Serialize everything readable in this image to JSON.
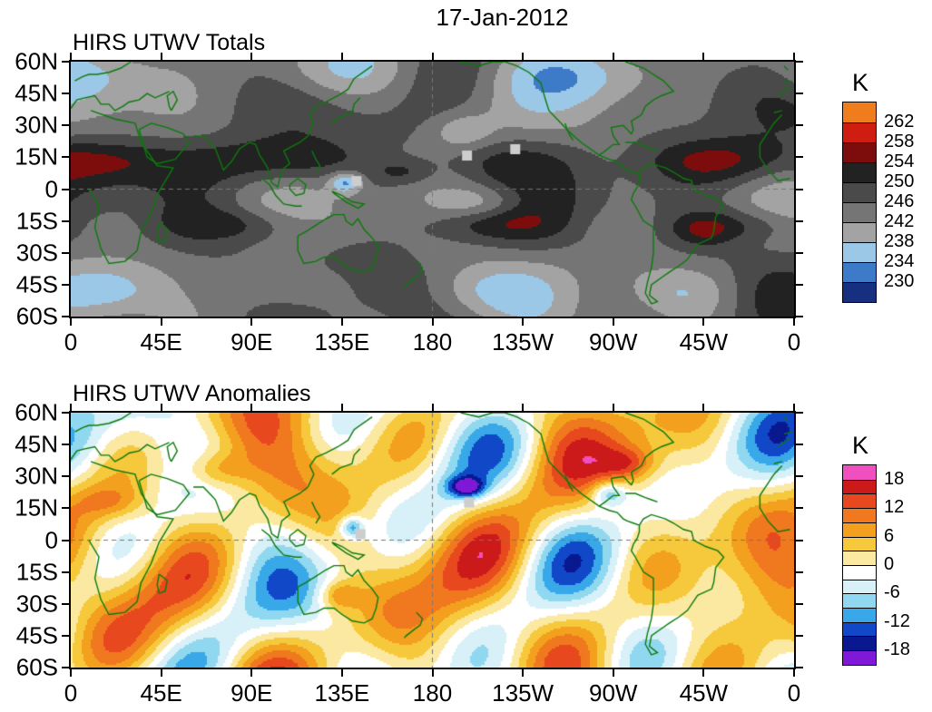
{
  "page_title": "17-Jan-2012",
  "panels": [
    {
      "title": "HIRS UTWV Totals",
      "colorbar": {
        "unit": "K",
        "labels": [
          "262",
          "258",
          "254",
          "250",
          "246",
          "242",
          "238",
          "234",
          "230"
        ],
        "colors": [
          "#ef7d1e",
          "#cf1d12",
          "#7d0d0d",
          "#222222",
          "#4a4a4a",
          "#757575",
          "#a3a3a3",
          "#9cc8e8",
          "#3d7ac8",
          "#162f7e"
        ]
      },
      "yticks": [
        "60N",
        "45N",
        "30N",
        "15N",
        "0",
        "15S",
        "30S",
        "45S",
        "60S"
      ],
      "xticks": [
        "0",
        "45E",
        "90E",
        "135E",
        "180",
        "135W",
        "90W",
        "45W",
        "0"
      ]
    },
    {
      "title": "HIRS UTWV Anomalies",
      "colorbar": {
        "unit": "K",
        "labels": [
          "18",
          "12",
          "6",
          "0",
          "-6",
          "-12",
          "-18"
        ],
        "colors": [
          "#f04fc0",
          "#cc1a1a",
          "#e8481e",
          "#f0781e",
          "#f2a01e",
          "#f6c83c",
          "#fbe9a2",
          "#ffffff",
          "#d8f0f8",
          "#90d8f0",
          "#38a8e8",
          "#1048c8",
          "#0a1890",
          "#8018d8"
        ]
      },
      "yticks": [
        "60N",
        "45N",
        "30N",
        "15N",
        "0",
        "15S",
        "30S",
        "45S",
        "60S"
      ],
      "xticks": [
        "0",
        "45E",
        "90E",
        "135E",
        "180",
        "135W",
        "90W",
        "45W",
        "0"
      ]
    }
  ],
  "chart_data": [
    {
      "type": "heatmap",
      "subtype": "filled_contour_world_map",
      "title": "HIRS UTWV Totals",
      "date": "17-Jan-2012",
      "units": "K",
      "lat_range": [
        -60,
        60
      ],
      "lon_range": [
        0,
        360
      ],
      "levels": [
        230,
        234,
        238,
        242,
        246,
        250,
        254,
        258,
        262
      ],
      "palette_top_to_bottom": [
        "#ef7d1e",
        "#cf1d12",
        "#7d0d0d",
        "#222222",
        "#4a4a4a",
        "#757575",
        "#a3a3a3",
        "#9cc8e8",
        "#3d7ac8",
        "#162f7e"
      ],
      "coastline_color": "#0b7a0b",
      "missing_markers_lonlat": [
        [
          142,
          4
        ],
        [
          197,
          16
        ],
        [
          221,
          19
        ]
      ],
      "xticks": [
        "0",
        "45E",
        "90E",
        "135E",
        "180",
        "135W",
        "90W",
        "45W",
        "0"
      ],
      "yticks": [
        "60N",
        "45N",
        "30N",
        "15N",
        "0",
        "15S",
        "30S",
        "45S",
        "60S"
      ]
    },
    {
      "type": "heatmap",
      "subtype": "filled_contour_world_map",
      "title": "HIRS UTWV Anomalies",
      "date": "17-Jan-2012",
      "units": "K",
      "lat_range": [
        -60,
        60
      ],
      "lon_range": [
        0,
        360
      ],
      "levels": [
        -18,
        -15,
        -12,
        -9,
        -6,
        -3,
        0,
        3,
        6,
        9,
        12,
        15,
        18
      ],
      "palette_top_to_bottom": [
        "#f04fc0",
        "#cc1a1a",
        "#e8481e",
        "#f0781e",
        "#f2a01e",
        "#f6c83c",
        "#fbe9a2",
        "#ffffff",
        "#d8f0f8",
        "#90d8f0",
        "#38a8e8",
        "#1048c8",
        "#0a1890",
        "#8018d8"
      ],
      "coastline_color": "#0b7a0b",
      "missing_markers_lonlat": [
        [
          144,
          3
        ],
        [
          198,
          18
        ]
      ],
      "xticks": [
        "0",
        "45E",
        "90E",
        "135E",
        "180",
        "135W",
        "90W",
        "45W",
        "0"
      ],
      "yticks": [
        "60N",
        "45N",
        "30N",
        "15N",
        "0",
        "15S",
        "30S",
        "45S",
        "60S"
      ]
    }
  ],
  "geo": {
    "equator_dashed": true,
    "dateline_dashed": true,
    "coastlines": [
      [
        [
          -6,
          35
        ],
        [
          10,
          37
        ],
        [
          22,
          33
        ],
        [
          32,
          31
        ],
        [
          35,
          22
        ],
        [
          43,
          11
        ],
        [
          51,
          10
        ],
        [
          44,
          -1
        ],
        [
          40,
          -11
        ],
        [
          35,
          -20
        ],
        [
          33,
          -29
        ],
        [
          27,
          -34
        ],
        [
          19,
          -35
        ],
        [
          15,
          -28
        ],
        [
          12,
          -18
        ],
        [
          14,
          -8
        ],
        [
          9,
          0
        ],
        [
          -2,
          5
        ],
        [
          -8,
          4
        ],
        [
          -13,
          9
        ],
        [
          -17,
          15
        ],
        [
          -17,
          21
        ],
        [
          -10,
          31
        ],
        [
          -6,
          35
        ]
      ],
      [
        [
          -10,
          36
        ],
        [
          -6,
          37
        ],
        [
          0,
          38
        ],
        [
          3,
          42
        ],
        [
          7,
          43
        ],
        [
          12,
          44
        ],
        [
          15,
          40
        ],
        [
          19,
          40
        ],
        [
          22,
          37
        ],
        [
          26,
          39
        ],
        [
          29,
          41
        ],
        [
          34,
          42
        ],
        [
          38,
          45
        ],
        [
          42,
          43
        ],
        [
          49,
          46
        ]
      ],
      [
        [
          -8,
          44
        ],
        [
          -2,
          48
        ],
        [
          2,
          51
        ],
        [
          6,
          53
        ],
        [
          9,
          54
        ],
        [
          13,
          54
        ],
        [
          19,
          55
        ],
        [
          25,
          57
        ],
        [
          30,
          60
        ]
      ],
      [
        [
          -5,
          50
        ],
        [
          -1,
          51
        ],
        [
          0,
          53
        ],
        [
          -3,
          56
        ],
        [
          -5,
          58
        ]
      ],
      [
        [
          34,
          28
        ],
        [
          38,
          15
        ],
        [
          43,
          12
        ],
        [
          52,
          14
        ],
        [
          59,
          22
        ],
        [
          56,
          26
        ],
        [
          48,
          29
        ],
        [
          40,
          31
        ],
        [
          34,
          28
        ]
      ],
      [
        [
          50,
          37
        ],
        [
          53,
          42
        ],
        [
          51,
          46
        ],
        [
          48,
          44
        ],
        [
          49,
          39
        ],
        [
          50,
          37
        ]
      ],
      [
        [
          61,
          25
        ],
        [
          66,
          25
        ],
        [
          70,
          21
        ],
        [
          72,
          19
        ],
        [
          76,
          9
        ],
        [
          80,
          13
        ],
        [
          84,
          19
        ],
        [
          89,
          22
        ],
        [
          92,
          21
        ],
        [
          94,
          16
        ],
        [
          98,
          10
        ],
        [
          100,
          3
        ],
        [
          103,
          1
        ],
        [
          105,
          9
        ],
        [
          109,
          12
        ],
        [
          106,
          18
        ],
        [
          110,
          20
        ],
        [
          114,
          22
        ],
        [
          118,
          25
        ],
        [
          121,
          31
        ]
      ],
      [
        [
          121,
          31
        ],
        [
          119,
          35
        ],
        [
          122,
          39
        ],
        [
          127,
          41
        ],
        [
          133,
          44
        ],
        [
          138,
          47
        ],
        [
          141,
          52
        ],
        [
          150,
          58
        ]
      ],
      [
        [
          130,
          31
        ],
        [
          134,
          34
        ],
        [
          137,
          35
        ],
        [
          140,
          36
        ],
        [
          141,
          40
        ],
        [
          144,
          43
        ]
      ],
      [
        [
          109,
          2
        ],
        [
          113,
          5
        ],
        [
          117,
          2
        ],
        [
          116,
          -2
        ],
        [
          112,
          -3
        ],
        [
          109,
          0
        ],
        [
          109,
          2
        ]
      ],
      [
        [
          95,
          5
        ],
        [
          99,
          2
        ],
        [
          102,
          -3
        ],
        [
          106,
          -7
        ],
        [
          112,
          -8
        ],
        [
          115,
          -8
        ]
      ],
      [
        [
          130,
          -1
        ],
        [
          135,
          -3
        ],
        [
          140,
          -6
        ],
        [
          146,
          -7
        ],
        [
          143,
          -9
        ],
        [
          137,
          -6
        ],
        [
          131,
          -2
        ],
        [
          130,
          -1
        ]
      ],
      [
        [
          120,
          18
        ],
        [
          122,
          14
        ],
        [
          124,
          11
        ],
        [
          122,
          8
        ]
      ],
      [
        [
          113,
          -22
        ],
        [
          117,
          -20
        ],
        [
          122,
          -17
        ],
        [
          127,
          -14
        ],
        [
          131,
          -12
        ],
        [
          136,
          -12
        ],
        [
          137,
          -15
        ],
        [
          140,
          -17
        ],
        [
          143,
          -14
        ],
        [
          146,
          -19
        ],
        [
          150,
          -23
        ],
        [
          153,
          -27
        ],
        [
          152,
          -32
        ],
        [
          150,
          -37
        ],
        [
          146,
          -39
        ],
        [
          140,
          -38
        ],
        [
          135,
          -35
        ],
        [
          131,
          -32
        ],
        [
          126,
          -32
        ],
        [
          122,
          -34
        ],
        [
          116,
          -35
        ],
        [
          113,
          -29
        ],
        [
          113,
          -22
        ]
      ],
      [
        [
          172,
          -34
        ],
        [
          175,
          -37
        ],
        [
          174,
          -40
        ],
        [
          171,
          -42
        ],
        [
          167,
          -45
        ],
        [
          166,
          -46
        ]
      ],
      [
        [
          44,
          -16
        ],
        [
          48,
          -19
        ],
        [
          47,
          -24
        ],
        [
          44,
          -25
        ],
        [
          43,
          -21
        ],
        [
          44,
          -16
        ]
      ],
      [
        [
          -166,
          60
        ],
        [
          -157,
          58
        ],
        [
          -150,
          60
        ],
        [
          -144,
          60
        ],
        [
          -138,
          58
        ],
        [
          -132,
          55
        ],
        [
          -126,
          50
        ],
        [
          -124,
          43
        ],
        [
          -122,
          37
        ],
        [
          -117,
          32
        ],
        [
          -112,
          27
        ],
        [
          -106,
          22
        ],
        [
          -97,
          16
        ],
        [
          -94,
          18
        ],
        [
          -90,
          21
        ],
        [
          -87,
          21
        ],
        [
          -90,
          25
        ],
        [
          -91,
          29
        ],
        [
          -85,
          30
        ],
        [
          -81,
          26
        ],
        [
          -80,
          28
        ],
        [
          -81,
          32
        ],
        [
          -76,
          35
        ],
        [
          -74,
          39
        ],
        [
          -70,
          42
        ],
        [
          -66,
          44
        ],
        [
          -60,
          46
        ],
        [
          -65,
          51
        ],
        [
          -75,
          57
        ],
        [
          -84,
          60
        ]
      ],
      [
        [
          -114,
          31
        ],
        [
          -112,
          26
        ],
        [
          -110,
          23
        ]
      ],
      [
        [
          -84,
          22
        ],
        [
          -79,
          22
        ],
        [
          -74,
          20
        ],
        [
          -71,
          19
        ],
        [
          -68,
          18
        ]
      ],
      [
        [
          -97,
          16
        ],
        [
          -92,
          14
        ],
        [
          -88,
          13
        ],
        [
          -85,
          10
        ],
        [
          -83,
          9
        ],
        [
          -80,
          8
        ],
        [
          -77,
          7
        ]
      ],
      [
        [
          -77,
          7
        ],
        [
          -75,
          10
        ],
        [
          -71,
          12
        ],
        [
          -64,
          10
        ],
        [
          -60,
          8
        ],
        [
          -55,
          5
        ],
        [
          -51,
          4
        ],
        [
          -50,
          0
        ],
        [
          -44,
          -3
        ],
        [
          -38,
          -5
        ],
        [
          -35,
          -8
        ],
        [
          -39,
          -13
        ],
        [
          -40,
          -20
        ],
        [
          -41,
          -23
        ],
        [
          -48,
          -26
        ],
        [
          -53,
          -33
        ],
        [
          -57,
          -36
        ],
        [
          -62,
          -39
        ],
        [
          -65,
          -41
        ],
        [
          -71,
          -45
        ],
        [
          -72,
          -50
        ],
        [
          -68,
          -53
        ],
        [
          -71,
          -54
        ],
        [
          -74,
          -49
        ],
        [
          -73,
          -44
        ],
        [
          -71,
          -37
        ],
        [
          -70,
          -30
        ],
        [
          -70,
          -23
        ],
        [
          -70,
          -18
        ],
        [
          -75,
          -15
        ],
        [
          -79,
          -8
        ],
        [
          -81,
          -5
        ],
        [
          -80,
          -2
        ],
        [
          -78,
          1
        ],
        [
          -77,
          4
        ],
        [
          -77,
          7
        ]
      ]
    ]
  }
}
